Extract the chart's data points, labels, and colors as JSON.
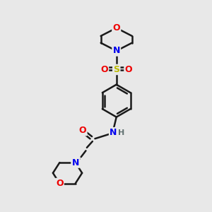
{
  "bg_color": "#e8e8e8",
  "bond_color": "#1a1a1a",
  "bond_width": 1.8,
  "atom_colors": {
    "C": "#1a1a1a",
    "N": "#0000ee",
    "O": "#ee0000",
    "S": "#bbbb00",
    "H": "#607070"
  },
  "font_size": 9,
  "font_size_h": 8
}
